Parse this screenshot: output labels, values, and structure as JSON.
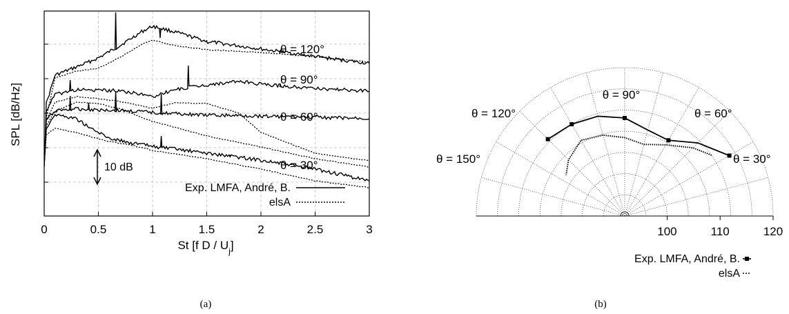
{
  "chart_data": [
    {
      "type": "line",
      "panel_caption": "(a)",
      "xlabel": "St [f D / U",
      "xlabel_subscript": "j",
      "xlabel_close": "]",
      "ylabel": "SPL [dB/Hz]",
      "xlim": [
        0,
        3
      ],
      "x_ticks": [
        "0",
        "0.5",
        "1",
        "1.5",
        "2",
        "2.5",
        "3"
      ],
      "y_ticks_labeled": false,
      "grid": true,
      "legend_position": "bottom-right",
      "scale_annotation": "10 dB",
      "angle_labels": [
        "θ = 120°",
        "θ = 90°",
        "θ = 60°",
        "θ = 30°"
      ],
      "series": [
        {
          "name": "Exp. LMFA, André, B.",
          "style": "solid"
        },
        {
          "name": "elsA",
          "style": "dotted"
        }
      ],
      "spectra_by_angle": [
        {
          "angle": "θ = 120°",
          "x": [
            0,
            0.02,
            0.1,
            0.3,
            0.5,
            0.7,
            0.9,
            1.0,
            1.2,
            1.5,
            2.0,
            2.5,
            3.0
          ],
          "exp": [
            240,
            150,
            109,
            97,
            84,
            66,
            46,
            38,
            46,
            60,
            71,
            82,
            92
          ],
          "elsa": [
            240,
            170,
            113,
            103,
            99,
            83,
            64,
            58,
            66,
            72,
            76,
            82,
            90
          ],
          "peaks": [
            {
              "x": 0.66,
              "y": 18
            },
            {
              "x": 1.07,
              "y": 55
            },
            {
              "x": 1.51,
              "y": 63
            },
            {
              "x": 2.18,
              "y": 73
            }
          ]
        },
        {
          "angle": "θ = 90°",
          "x": [
            0,
            0.02,
            0.1,
            0.3,
            0.5,
            0.7,
            1.0,
            1.2,
            1.5,
            1.8,
            2.0,
            2.5,
            3.0
          ],
          "exp": [
            240,
            160,
            137,
            130,
            131,
            131,
            140,
            130,
            123,
            118,
            122,
            128,
            132
          ],
          "elsa": [
            240,
            175,
            148,
            140,
            143,
            147,
            157,
            149,
            150,
            164,
            192,
            222,
            233
          ],
          "peaks": [
            {
              "x": 0.24,
              "y": 116
            },
            {
              "x": 1.33,
              "y": 95
            },
            {
              "x": 2.18,
              "y": 123
            }
          ]
        },
        {
          "angle": "θ = 60°",
          "x": [
            0,
            0.02,
            0.1,
            0.3,
            0.5,
            0.7,
            1.0,
            1.5,
            2.0,
            2.5,
            3.0
          ],
          "exp": [
            240,
            175,
            160,
            158,
            159,
            160,
            163,
            167,
            168,
            170,
            172
          ],
          "elsa": [
            240,
            182,
            161,
            148,
            150,
            158,
            176,
            197,
            213,
            230,
            242
          ],
          "peaks": [
            {
              "x": 0.24,
              "y": 139
            },
            {
              "x": 0.41,
              "y": 149
            },
            {
              "x": 0.66,
              "y": 132
            },
            {
              "x": 1.08,
              "y": 136
            }
          ]
        },
        {
          "angle": "θ = 30°",
          "x": [
            0,
            0.02,
            0.1,
            0.3,
            0.45,
            0.6,
            0.8,
            1.0,
            1.5,
            2.0,
            2.5,
            3.0
          ],
          "exp": [
            240,
            185,
            166,
            172,
            188,
            200,
            207,
            212,
            222,
            232,
            245,
            262
          ],
          "elsa": [
            240,
            195,
            186,
            192,
            199,
            205,
            210,
            218,
            230,
            245,
            262,
            272
          ],
          "peaks": [
            {
              "x": 1.08,
              "y": 197
            },
            {
              "x": 1.72,
              "y": 226
            }
          ]
        }
      ]
    },
    {
      "type": "polar",
      "panel_caption": "(b)",
      "radial_unit": "dB",
      "radial_ticks": [
        "100",
        "110",
        "120"
      ],
      "radial_range": [
        92,
        120
      ],
      "angle_labels": [
        "θ = 150°",
        "θ = 120°",
        "θ = 90°",
        "θ = 60°",
        "θ = 30°"
      ],
      "legend_position": "bottom-right",
      "series": [
        {
          "name": "Exp. LMFA, André, B.",
          "style": "solid with square markers",
          "points": [
            {
              "angle": 30,
              "db": 114.8
            },
            {
              "angle": 45,
              "db": 111.5
            },
            {
              "angle": 60,
              "db": 108.5
            },
            {
              "angle": 75,
              "db": 108.8
            },
            {
              "angle": 90,
              "db": 110.5
            },
            {
              "angle": 105,
              "db": 111.5
            },
            {
              "angle": 120,
              "db": 112.0
            },
            {
              "angle": 135,
              "db": 112.5
            }
          ]
        },
        {
          "name": "elsA",
          "style": "dotted",
          "points": [
            {
              "angle": 35,
              "db": 112.0
            },
            {
              "angle": 45,
              "db": 110.2
            },
            {
              "angle": 60,
              "db": 107.5
            },
            {
              "angle": 75,
              "db": 106.0
            },
            {
              "angle": 90,
              "db": 106.8
            },
            {
              "angle": 105,
              "db": 107.8
            },
            {
              "angle": 120,
              "db": 108.5
            },
            {
              "angle": 135,
              "db": 107.0
            },
            {
              "angle": 145,
              "db": 105.5
            }
          ]
        }
      ]
    }
  ]
}
